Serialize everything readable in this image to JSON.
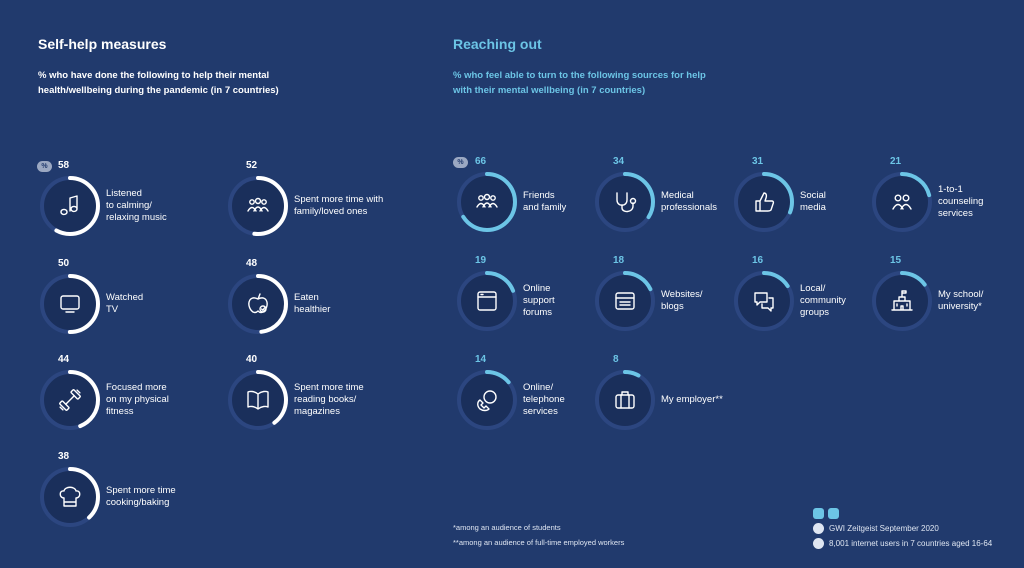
{
  "left": {
    "title": "Self-help measures",
    "subtitle": "% who have done the following to help their mental health/wellbeing during the pandemic (in 7 countries)",
    "badge": "%"
  },
  "right": {
    "title": "Reaching out",
    "subtitle": "% who feel able to turn to the following sources for help with their mental wellbeing (in 7 countries)",
    "badge": "%"
  },
  "chart_data": [
    {
      "type": "bar",
      "title": "Self-help measures",
      "categories": [
        "Listened to calming/ relaxing music",
        "Spent more time with family/loved ones",
        "Watched TV",
        "Eaten healthier",
        "Focused more on my physical fitness",
        "Spent more time reading books/ magazines",
        "Spent more time cooking/baking"
      ],
      "values": [
        58,
        52,
        50,
        48,
        44,
        40,
        38
      ],
      "unit": "%",
      "ring_color": "#ffffff",
      "icons": [
        "music-note-icon",
        "family-icon",
        "tv-icon",
        "apple-icon",
        "dumbbell-icon",
        "book-icon",
        "chef-hat-icon"
      ],
      "labels": [
        [
          "Listened",
          "to calming/",
          "relaxing music"
        ],
        [
          "Spent more time with",
          "family/loved ones"
        ],
        [
          "Watched",
          "TV"
        ],
        [
          "Eaten",
          "healthier"
        ],
        [
          "Focused more",
          "on my physical",
          "fitness"
        ],
        [
          "Spent more time",
          "reading books/",
          "magazines"
        ],
        [
          "Spent more time",
          "cooking/baking"
        ]
      ]
    },
    {
      "type": "bar",
      "title": "Reaching out",
      "categories": [
        "Friends and family",
        "Medical professionals",
        "Social media",
        "1-to-1 counseling services",
        "Online support forums",
        "Websites/ blogs",
        "Local/ community groups",
        "My school/ university*",
        "Online/ telephone services",
        "My employer**"
      ],
      "values": [
        66,
        34,
        31,
        21,
        19,
        18,
        16,
        15,
        14,
        8
      ],
      "unit": "%",
      "ring_color": "#6cc5e6",
      "icons": [
        "people-icon",
        "stethoscope-icon",
        "thumbs-up-icon",
        "two-people-icon",
        "browser-window-icon",
        "website-icon",
        "chat-bubbles-icon",
        "school-icon",
        "phone-icon",
        "briefcase-icon"
      ],
      "labels": [
        [
          "Friends",
          "and family"
        ],
        [
          "Medical",
          "professionals"
        ],
        [
          "Social",
          "media"
        ],
        [
          "1-to-1",
          "counseling",
          "services"
        ],
        [
          "Online",
          "support",
          "forums"
        ],
        [
          "Websites/",
          "blogs"
        ],
        [
          "Local/",
          "community",
          "groups"
        ],
        [
          "My school/",
          "university*"
        ],
        [
          "Online/",
          "telephone",
          "services"
        ],
        [
          "My employer**"
        ]
      ]
    }
  ],
  "footnotes": {
    "students": "*among an audience of students",
    "employed": "**among an audience of full-time employed workers"
  },
  "source": {
    "survey": "GWI Zeitgeist September 2020",
    "sample": "8,001 internet users in 7 countries aged 16-64"
  },
  "colors": {
    "background": "#213a6d",
    "accent": "#6cc5e6",
    "track": "#1a2f5b"
  }
}
